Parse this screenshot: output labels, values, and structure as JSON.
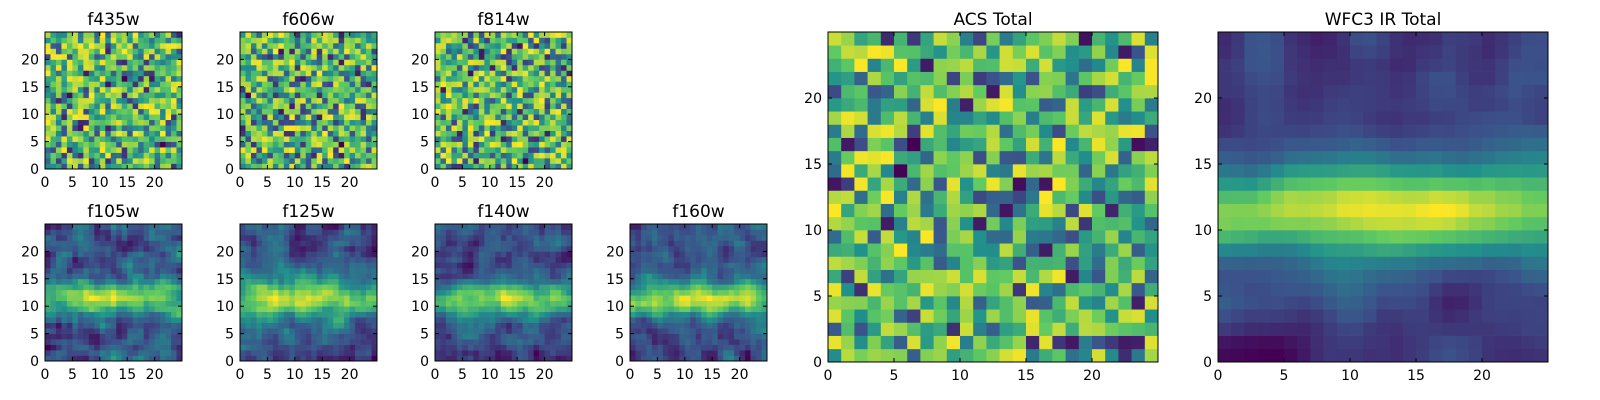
{
  "chart_data": [
    {
      "type": "heatmap",
      "title": "f435w",
      "x_ticks": [
        "0",
        "5",
        "10",
        "15",
        "20"
      ],
      "y_ticks": [
        "0",
        "5",
        "10",
        "15",
        "20"
      ],
      "size": 25,
      "seed": 11,
      "smooth": 0,
      "blob": 0,
      "colormap": "viridis"
    },
    {
      "type": "heatmap",
      "title": "f606w",
      "x_ticks": [
        "0",
        "5",
        "10",
        "15",
        "20"
      ],
      "y_ticks": [
        "0",
        "5",
        "10",
        "15",
        "20"
      ],
      "size": 25,
      "seed": 23,
      "smooth": 0,
      "blob": 0,
      "colormap": "viridis"
    },
    {
      "type": "heatmap",
      "title": "f814w",
      "x_ticks": [
        "0",
        "5",
        "10",
        "15",
        "20"
      ],
      "y_ticks": [
        "0",
        "5",
        "10",
        "15",
        "20"
      ],
      "size": 25,
      "seed": 37,
      "smooth": 0,
      "blob": 0,
      "colormap": "viridis"
    },
    {
      "type": "heatmap",
      "title": "f105w",
      "x_ticks": [
        "0",
        "5",
        "10",
        "15",
        "20"
      ],
      "y_ticks": [
        "0",
        "5",
        "10",
        "15",
        "20"
      ],
      "size": 25,
      "seed": 41,
      "smooth": 1,
      "blob": 0.45,
      "colormap": "viridis"
    },
    {
      "type": "heatmap",
      "title": "f125w",
      "x_ticks": [
        "0",
        "5",
        "10",
        "15",
        "20"
      ],
      "y_ticks": [
        "0",
        "5",
        "10",
        "15",
        "20"
      ],
      "size": 25,
      "seed": 53,
      "smooth": 1,
      "blob": 0.55,
      "colormap": "viridis"
    },
    {
      "type": "heatmap",
      "title": "f140w",
      "x_ticks": [
        "0",
        "5",
        "10",
        "15",
        "20"
      ],
      "y_ticks": [
        "0",
        "5",
        "10",
        "15",
        "20"
      ],
      "size": 25,
      "seed": 67,
      "smooth": 1,
      "blob": 0.55,
      "colormap": "viridis"
    },
    {
      "type": "heatmap",
      "title": "f160w",
      "x_ticks": [
        "0",
        "5",
        "10",
        "15",
        "20"
      ],
      "y_ticks": [
        "0",
        "5",
        "10",
        "15",
        "20"
      ],
      "size": 25,
      "seed": 79,
      "smooth": 1,
      "blob": 0.6,
      "colormap": "viridis"
    },
    {
      "type": "heatmap",
      "title": "ACS Total",
      "x_ticks": [
        "0",
        "5",
        "10",
        "15",
        "20"
      ],
      "y_ticks": [
        "0",
        "5",
        "10",
        "15",
        "20"
      ],
      "size": 25,
      "seed": 83,
      "smooth": 0,
      "blob": 0,
      "colormap": "viridis"
    },
    {
      "type": "heatmap",
      "title": "WFC3 IR Total",
      "x_ticks": [
        "0",
        "5",
        "10",
        "15",
        "20"
      ],
      "y_ticks": [
        "0",
        "5",
        "10",
        "15",
        "20"
      ],
      "size": 25,
      "seed": 97,
      "smooth": 2,
      "blob": 0.75,
      "colormap": "viridis"
    }
  ],
  "colormap_stops": [
    "#440154",
    "#3b528b",
    "#21918c",
    "#5ec962",
    "#fde725"
  ]
}
